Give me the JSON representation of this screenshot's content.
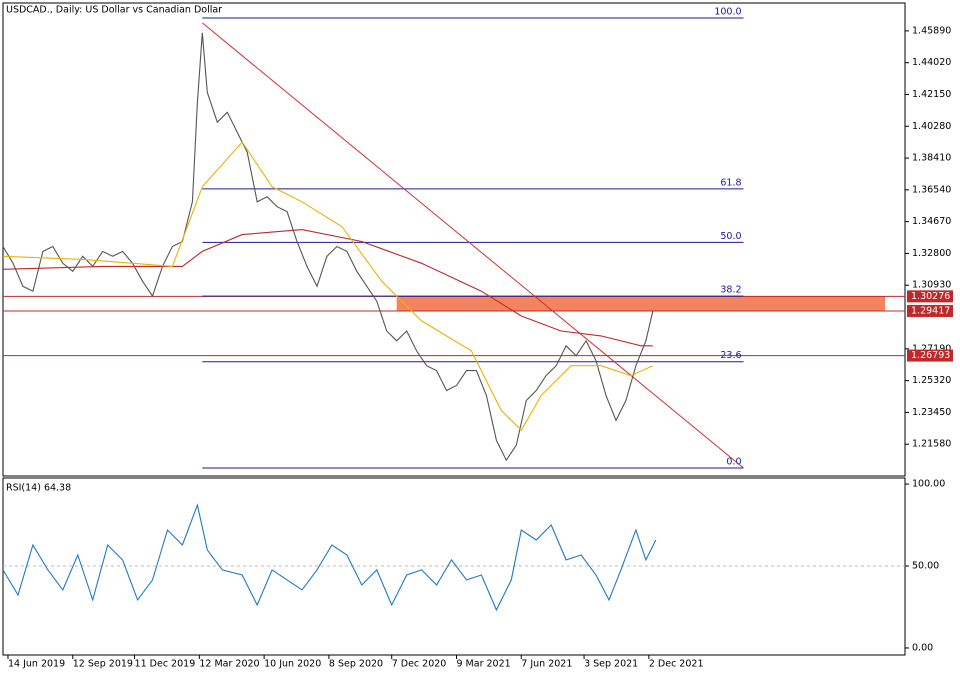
{
  "chart_data": [
    {
      "type": "price",
      "title": "USDCAD., Daily:  US Dollar vs Canadian Dollar",
      "xlim": [
        0,
        905
      ],
      "xticks": [
        {
          "value": 5,
          "label": "14 Jun 2019"
        },
        {
          "value": 70,
          "label": "12 Sep 2019"
        },
        {
          "value": 132,
          "label": "11 Dec 2019"
        },
        {
          "value": 197,
          "label": "12 Mar 2020"
        },
        {
          "value": 262,
          "label": "10 Jun 2020"
        },
        {
          "value": 327,
          "label": "8 Sep 2020"
        },
        {
          "value": 390,
          "label": "7 Dec 2020"
        },
        {
          "value": 455,
          "label": "9 Mar 2021"
        },
        {
          "value": 520,
          "label": "7 Jun 2021"
        },
        {
          "value": 583,
          "label": "3 Sep 2021"
        },
        {
          "value": 648,
          "label": "2 Dec 2021"
        }
      ],
      "ylim": [
        1.1971,
        1.4753
      ],
      "yticks": [
        {
          "value": 1.4589,
          "label": "1.45890"
        },
        {
          "value": 1.4402,
          "label": "1.44020"
        },
        {
          "value": 1.4215,
          "label": "1.42150"
        },
        {
          "value": 1.4028,
          "label": "1.40280"
        },
        {
          "value": 1.3841,
          "label": "1.38410"
        },
        {
          "value": 1.3654,
          "label": "1.36540"
        },
        {
          "value": 1.3467,
          "label": "1.34670"
        },
        {
          "value": 1.328,
          "label": "1.32800"
        },
        {
          "value": 1.3093,
          "label": "1.30930"
        },
        {
          "value": 1.2719,
          "label": "1.27190"
        },
        {
          "value": 1.2532,
          "label": "1.25320"
        },
        {
          "value": 1.2345,
          "label": "1.23450"
        },
        {
          "value": 1.2158,
          "label": "1.21580"
        }
      ],
      "series": [
        {
          "name": "Close",
          "color": "#555555",
          "x": [
            0,
            10,
            20,
            30,
            40,
            50,
            60,
            70,
            80,
            90,
            100,
            110,
            120,
            130,
            140,
            150,
            160,
            170,
            180,
            190,
            195,
            200,
            205,
            215,
            225,
            235,
            245,
            255,
            265,
            275,
            285,
            295,
            305,
            315,
            325,
            335,
            345,
            355,
            365,
            375,
            385,
            395,
            405,
            415,
            425,
            435,
            445,
            455,
            465,
            475,
            485,
            495,
            505,
            515,
            525,
            535,
            545,
            555,
            565,
            575,
            585,
            595,
            605,
            615,
            625,
            635,
            645,
            652
          ],
          "values": [
            1.3321,
            1.3222,
            1.3087,
            1.3058,
            1.3292,
            1.3321,
            1.3222,
            1.3175,
            1.3263,
            1.3204,
            1.3292,
            1.3263,
            1.3292,
            1.3222,
            1.3117,
            1.3029,
            1.3204,
            1.3321,
            1.335,
            1.3584,
            1.4169,
            1.4578,
            1.4227,
            1.4052,
            1.411,
            1.3993,
            1.3876,
            1.3584,
            1.3613,
            1.3555,
            1.3526,
            1.335,
            1.3204,
            1.3087,
            1.3263,
            1.3321,
            1.3292,
            1.3175,
            1.3087,
            1.2999,
            1.2824,
            1.2766,
            1.2824,
            1.2707,
            1.262,
            1.2591,
            1.2474,
            1.2503,
            1.2591,
            1.2591,
            1.2445,
            1.2181,
            1.2064,
            1.2152,
            1.2415,
            1.2474,
            1.2562,
            1.262,
            1.2737,
            1.2678,
            1.2766,
            1.2649,
            1.2445,
            1.2298,
            1.2415,
            1.262,
            1.2766,
            1.2941
          ]
        },
        {
          "name": "MA200",
          "color": "#c0282a",
          "x": [
            0,
            100,
            180,
            200,
            240,
            300,
            360,
            420,
            480,
            520,
            560,
            600,
            640,
            652
          ],
          "values": [
            1.3187,
            1.3204,
            1.3204,
            1.3292,
            1.3391,
            1.342,
            1.335,
            1.3222,
            1.3058,
            1.2912,
            1.2824,
            1.2795,
            1.2737,
            1.2737
          ]
        },
        {
          "name": "MA50",
          "color": "#e8b400",
          "x": [
            0,
            80,
            170,
            200,
            240,
            270,
            300,
            340,
            380,
            420,
            470,
            500,
            520,
            540,
            570,
            600,
            630,
            652
          ],
          "values": [
            1.3263,
            1.3245,
            1.3204,
            1.3672,
            1.3935,
            1.3672,
            1.3584,
            1.3438,
            1.3117,
            1.2883,
            1.2707,
            1.2357,
            1.224,
            1.2445,
            1.262,
            1.262,
            1.2561,
            1.262
          ]
        }
      ],
      "fibonacci": [
        {
          "label": "100.0",
          "price": 1.4665
        },
        {
          "label": "61.8",
          "price": 1.366
        },
        {
          "label": "50.0",
          "price": 1.3345
        },
        {
          "label": "38.2",
          "price": 1.3029
        },
        {
          "label": "23.6",
          "price": 1.2643
        },
        {
          "label": "0.0",
          "price": 1.2018
        }
      ],
      "fib_x": [
        200,
        743
      ],
      "trendline": {
        "x": [
          200,
          743
        ],
        "values": [
          1.4636,
          1.2018
        ],
        "color": "#d03030"
      },
      "zone": {
        "x": [
          395,
          885
        ],
        "values": [
          1.30276,
          1.29417
        ],
        "color": "#f4845f"
      },
      "levels": [
        {
          "price": 1.30276,
          "color": "#c0282a"
        },
        {
          "price": 1.29417,
          "color": "#c0282a"
        },
        {
          "price": 1.26793,
          "color": "#c0282a"
        }
      ]
    },
    {
      "type": "line",
      "title": "RSI(14) 64.38",
      "xlim": [
        0,
        905
      ],
      "ylim": [
        -4.3,
        103.7
      ],
      "yticks": [
        {
          "value": 100,
          "label": "100.00"
        },
        {
          "value": 50,
          "label": "50.00"
        },
        {
          "value": 0,
          "label": "0.00"
        }
      ],
      "series": [
        {
          "name": "RSI",
          "color": "#1e78c8",
          "x": [
            0,
            15,
            30,
            45,
            60,
            75,
            90,
            105,
            120,
            135,
            150,
            165,
            180,
            195,
            205,
            220,
            240,
            255,
            270,
            285,
            300,
            315,
            330,
            345,
            360,
            375,
            390,
            405,
            420,
            435,
            450,
            465,
            480,
            495,
            510,
            520,
            535,
            550,
            565,
            580,
            595,
            608,
            620,
            635,
            645,
            655
          ],
          "values": [
            47.6,
            32.3,
            62.8,
            47.6,
            35.4,
            56.7,
            29.3,
            62.8,
            53.7,
            29.3,
            41.5,
            72,
            62.8,
            87.2,
            59.8,
            47.6,
            44.5,
            26.2,
            47.6,
            41.5,
            35.4,
            47.6,
            62.8,
            56.7,
            38.4,
            47.6,
            26.2,
            44.5,
            47.6,
            38.4,
            53.7,
            41.5,
            44.5,
            23.2,
            41.5,
            72,
            65.9,
            75,
            53.7,
            56.7,
            44.5,
            29.3,
            47.6,
            72,
            53.7,
            65.9
          ]
        }
      ]
    }
  ]
}
